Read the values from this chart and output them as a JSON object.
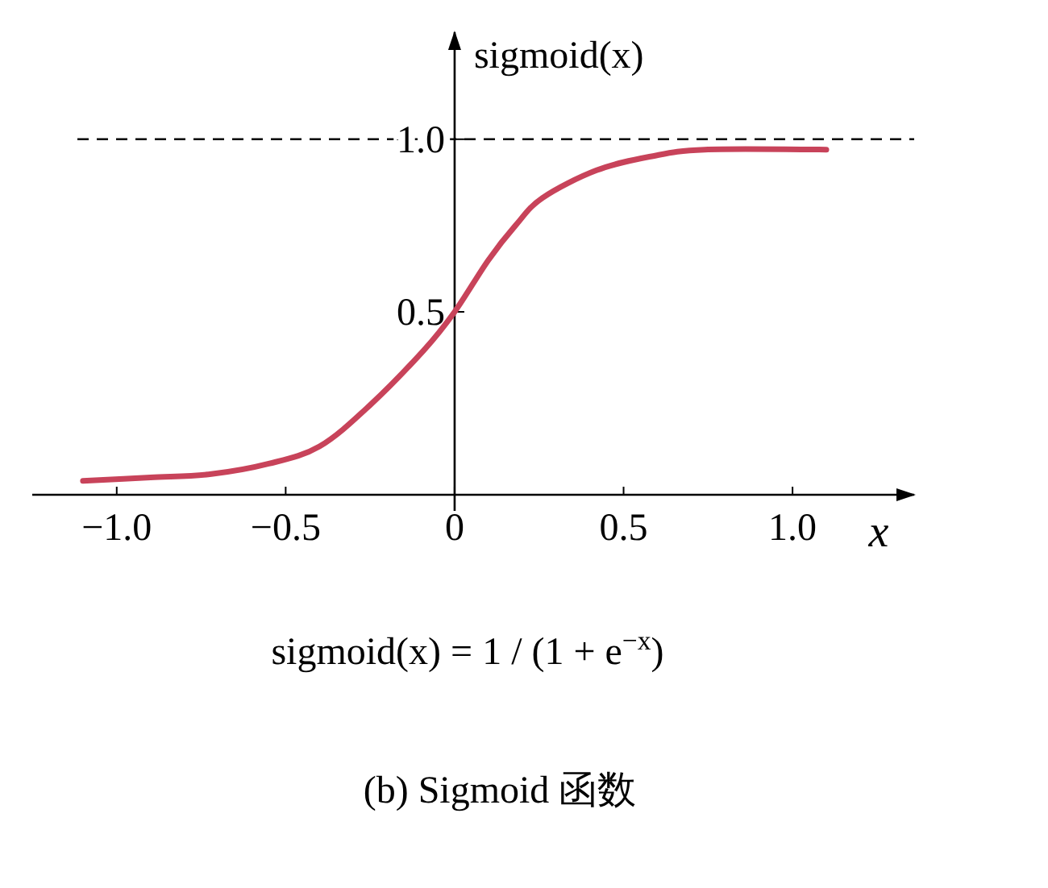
{
  "chart_data": {
    "type": "line",
    "title": "(b) Sigmoid 函数",
    "xlabel": "x",
    "ylabel": "sigmoid(x)",
    "annotations": [
      "sigmoid(x) = 1 / (1 + e$^{−x}$)"
    ],
    "x": [
      -1.1,
      -0.9,
      -0.72,
      -0.55,
      -0.4,
      -0.25,
      -0.09,
      0,
      0.1,
      0.18,
      0.26,
      0.42,
      0.58,
      0.74,
      1.1
    ],
    "values": [
      0.01,
      0.02,
      0.03,
      0.06,
      0.11,
      0.23,
      0.39,
      0.5,
      0.65,
      0.75,
      0.83,
      0.91,
      0.95,
      0.97,
      0.97
    ],
    "color": "#c8435a",
    "xlim": [
      -1.25,
      1.36
    ],
    "ylim": [
      -0.03,
      1.31
    ],
    "xticks": [
      {
        "value": -1,
        "label": "−1.0"
      },
      {
        "value": -0.5,
        "label": "−0.5"
      },
      0,
      {
        "value": 0.5,
        "label": "0.5"
      },
      {
        "value": 1,
        "label": "1.0"
      }
    ],
    "yticks": [
      {
        "value": 0.5,
        "label": "0.5"
      },
      {
        "value": 1,
        "label": "1.0"
      }
    ],
    "ref_lines": [
      {
        "axis": "y",
        "value": 1,
        "line_style": "dashed",
        "color": "#000000"
      }
    ]
  }
}
